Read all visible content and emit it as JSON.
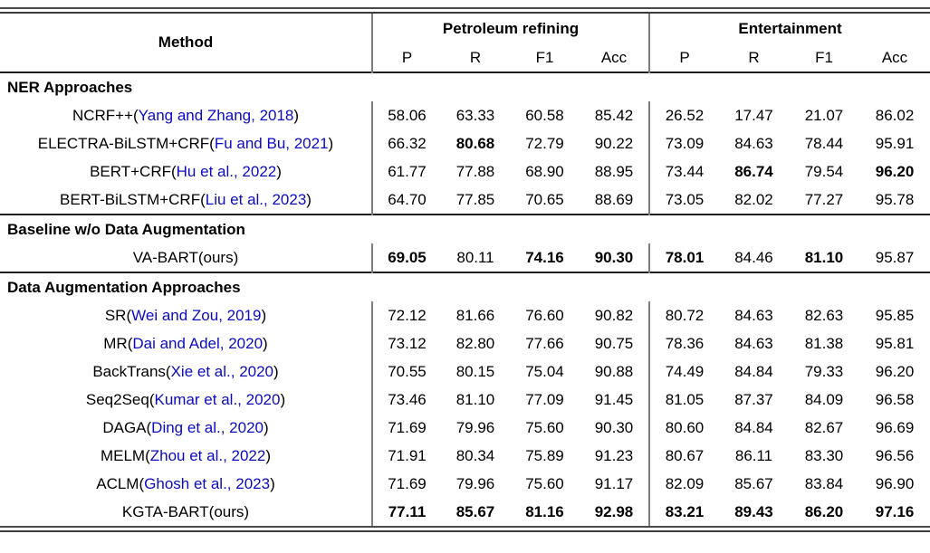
{
  "table": {
    "method_header": "Method",
    "groups": [
      {
        "label": "Petroleum refining",
        "metrics": [
          "P",
          "R",
          "F1",
          "Acc"
        ]
      },
      {
        "label": "Entertainment",
        "metrics": [
          "P",
          "R",
          "F1",
          "Acc"
        ]
      }
    ],
    "sections": [
      {
        "title": "NER Approaches",
        "rows": [
          {
            "method": "NCRF++",
            "cite": "Yang and Zhang, 2018",
            "cite_is_link": true,
            "values": [
              "58.06",
              "63.33",
              "60.58",
              "85.42",
              "26.52",
              "17.47",
              "21.07",
              "86.02"
            ],
            "bold": []
          },
          {
            "method": "ELECTRA-BiLSTM+CRF",
            "cite": "Fu and Bu, 2021",
            "cite_is_link": true,
            "values": [
              "66.32",
              "80.68",
              "72.79",
              "90.22",
              "73.09",
              "84.63",
              "78.44",
              "95.91"
            ],
            "bold": [
              1
            ]
          },
          {
            "method": "BERT+CRF",
            "cite": "Hu et al., 2022",
            "cite_is_link": true,
            "values": [
              "61.77",
              "77.88",
              "68.90",
              "88.95",
              "73.44",
              "86.74",
              "79.54",
              "96.20"
            ],
            "bold": [
              5,
              7
            ]
          },
          {
            "method": "BERT-BiLSTM+CRF",
            "cite": "Liu et al., 2023",
            "cite_is_link": true,
            "values": [
              "64.70",
              "77.85",
              "70.65",
              "88.69",
              "73.05",
              "82.02",
              "77.27",
              "95.78"
            ],
            "bold": []
          }
        ]
      },
      {
        "title": "Baseline w/o Data Augmentation",
        "rows": [
          {
            "method": "VA-BART",
            "cite": "ours",
            "cite_is_link": false,
            "values": [
              "69.05",
              "80.11",
              "74.16",
              "90.30",
              "78.01",
              "84.46",
              "81.10",
              "95.87"
            ],
            "bold": [
              0,
              2,
              3,
              4,
              6
            ]
          }
        ]
      },
      {
        "title": "Data Augmentation Approaches",
        "rows": [
          {
            "method": "SR",
            "cite": "Wei and Zou, 2019",
            "cite_is_link": true,
            "values": [
              "72.12",
              "81.66",
              "76.60",
              "90.82",
              "80.72",
              "84.63",
              "82.63",
              "95.85"
            ],
            "bold": []
          },
          {
            "method": "MR",
            "cite": "Dai and Adel, 2020",
            "cite_is_link": true,
            "values": [
              "73.12",
              "82.80",
              "77.66",
              "90.75",
              "78.36",
              "84.63",
              "81.38",
              "95.81"
            ],
            "bold": []
          },
          {
            "method": "BackTrans",
            "cite": "Xie et al., 2020",
            "cite_is_link": true,
            "values": [
              "70.55",
              "80.15",
              "75.04",
              "90.88",
              "74.49",
              "84.84",
              "79.33",
              "96.20"
            ],
            "bold": []
          },
          {
            "method": "Seq2Seq",
            "cite": "Kumar et al., 2020",
            "cite_is_link": true,
            "values": [
              "73.46",
              "81.10",
              "77.09",
              "91.45",
              "81.05",
              "87.37",
              "84.09",
              "96.58"
            ],
            "bold": []
          },
          {
            "method": "DAGA",
            "cite": "Ding et al., 2020",
            "cite_is_link": true,
            "values": [
              "71.69",
              "79.96",
              "75.60",
              "90.30",
              "80.60",
              "84.84",
              "82.67",
              "96.69"
            ],
            "bold": []
          },
          {
            "method": "MELM",
            "cite": "Zhou et al., 2022",
            "cite_is_link": true,
            "values": [
              "71.91",
              "80.34",
              "75.89",
              "91.23",
              "80.67",
              "86.11",
              "83.30",
              "96.56"
            ],
            "bold": []
          },
          {
            "method": "ACLM",
            "cite": "Ghosh et al., 2023",
            "cite_is_link": true,
            "values": [
              "71.69",
              "79.96",
              "75.60",
              "91.17",
              "82.09",
              "85.67",
              "83.84",
              "96.90"
            ],
            "bold": []
          },
          {
            "method": "KGTA-BART",
            "cite": "ours",
            "cite_is_link": false,
            "values": [
              "77.11",
              "85.67",
              "81.16",
              "92.98",
              "83.21",
              "89.43",
              "86.20",
              "97.16"
            ],
            "bold": [
              0,
              1,
              2,
              3,
              4,
              5,
              6,
              7
            ]
          }
        ]
      }
    ]
  },
  "colors": {
    "citation_link": "#0b0bc4",
    "text": "#000000",
    "divider": "#7d7d7d",
    "rule": "#3a3a3a",
    "background": "#ffffff"
  }
}
